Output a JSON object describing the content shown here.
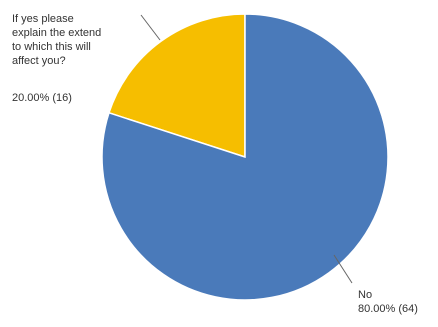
{
  "chart_data": {
    "type": "pie",
    "slices": [
      {
        "label_lines": [
          "If yes please",
          "explain the extend",
          "to which this will",
          "affect you?"
        ],
        "value_label": "20.00% (16)",
        "percent": 20.0,
        "count": 16,
        "color": "#F6BE00"
      },
      {
        "label_lines": [
          "No"
        ],
        "value_label": "80.00% (64)",
        "percent": 80.0,
        "count": 64,
        "color": "#4A7ABA"
      }
    ],
    "legend": "none"
  }
}
